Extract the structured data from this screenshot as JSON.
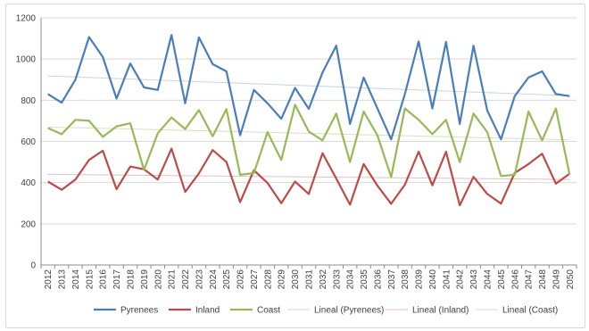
{
  "chart_data": {
    "type": "line",
    "x": [
      2012,
      2013,
      2014,
      2015,
      2016,
      2017,
      2018,
      2019,
      2020,
      2021,
      2022,
      2023,
      2024,
      2025,
      2026,
      2027,
      2028,
      2029,
      2030,
      2031,
      2032,
      2033,
      2034,
      2035,
      2036,
      2037,
      2038,
      2039,
      2040,
      2041,
      2042,
      2043,
      2044,
      2045,
      2046,
      2047,
      2048,
      2049,
      2050
    ],
    "ylim": [
      0,
      1200
    ],
    "yticks": [
      0,
      200,
      400,
      600,
      800,
      1000,
      1200
    ],
    "grid": true,
    "legend_position": "bottom",
    "series": [
      {
        "name": "Pyrenees",
        "color": "#4a7dbb",
        "values": [
          830,
          788,
          900,
          1107,
          1010,
          808,
          978,
          862,
          850,
          1117,
          785,
          1105,
          975,
          940,
          630,
          850,
          785,
          710,
          860,
          758,
          935,
          1065,
          685,
          910,
          760,
          610,
          830,
          1085,
          760,
          1083,
          685,
          1065,
          750,
          610,
          820,
          910,
          940,
          830,
          820
        ]
      },
      {
        "name": "Inland",
        "color": "#be4b48",
        "values": [
          405,
          365,
          415,
          510,
          555,
          368,
          478,
          465,
          415,
          565,
          355,
          445,
          558,
          500,
          305,
          460,
          398,
          300,
          405,
          345,
          543,
          420,
          293,
          490,
          385,
          297,
          390,
          550,
          387,
          550,
          290,
          428,
          345,
          298,
          447,
          490,
          540,
          395,
          443
        ]
      },
      {
        "name": "Coast",
        "color": "#98b954",
        "values": [
          665,
          635,
          705,
          700,
          622,
          673,
          688,
          462,
          640,
          716,
          660,
          752,
          625,
          757,
          438,
          446,
          645,
          510,
          778,
          648,
          605,
          735,
          500,
          745,
          630,
          427,
          760,
          705,
          635,
          705,
          500,
          735,
          645,
          432,
          438,
          745,
          605,
          760,
          438
        ]
      }
    ],
    "trendlines": [
      {
        "name": "Lineal (Pyrenees)",
        "color": "#c6d4ea",
        "start": 918,
        "end": 822
      },
      {
        "name": "Lineal (Inland)",
        "color": "#e3c2c1",
        "start": 440,
        "end": 415
      },
      {
        "name": "Lineal (Coast)",
        "color": "#d3e2bd",
        "start": 670,
        "end": 608
      }
    ]
  }
}
